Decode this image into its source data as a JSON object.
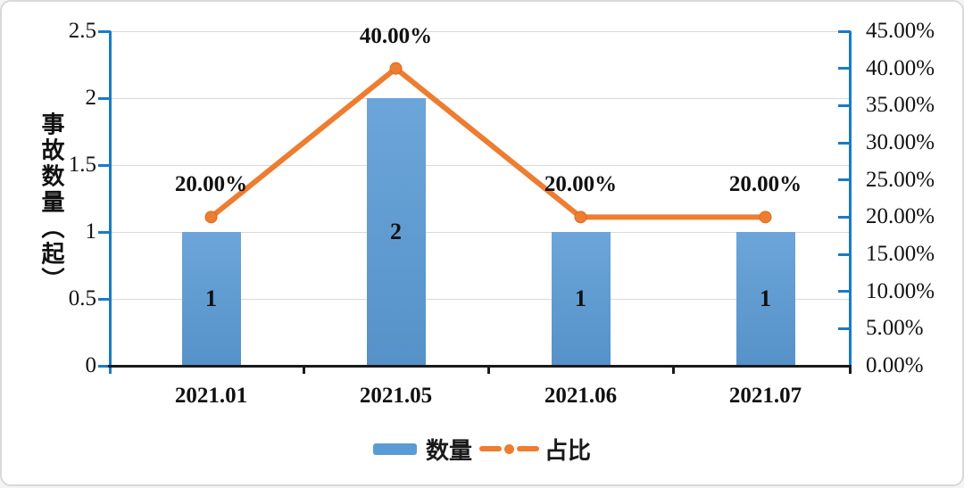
{
  "chart_data": {
    "type": "bar-line-combo",
    "categories": [
      "2021.01",
      "2021.05",
      "2021.06",
      "2021.07"
    ],
    "series": [
      {
        "name": "数量",
        "type": "bar",
        "axis": "left",
        "values": [
          1,
          2,
          1,
          1
        ],
        "bar_labels": [
          "1",
          "2",
          "1",
          "1"
        ],
        "color": "#5B9BD5"
      },
      {
        "name": "占比",
        "type": "line",
        "axis": "right",
        "values": [
          20,
          40,
          20,
          20
        ],
        "point_labels": [
          "20.00%",
          "40.00%",
          "20.00%",
          "20.00%"
        ],
        "color": "#ED7D31"
      }
    ],
    "left_axis": {
      "title": "事故数量（起）",
      "min": 0,
      "max": 2.5,
      "ticks": [
        {
          "v": 2.5,
          "label": "2.5"
        },
        {
          "v": 2,
          "label": "2"
        },
        {
          "v": 1.5,
          "label": "1.5"
        },
        {
          "v": 1,
          "label": "1"
        },
        {
          "v": 0.5,
          "label": "0.5"
        },
        {
          "v": 0,
          "label": "0"
        }
      ]
    },
    "right_axis": {
      "min": 0,
      "max": 45,
      "ticks": [
        {
          "v": 45,
          "label": "45.00%"
        },
        {
          "v": 40,
          "label": "40.00%"
        },
        {
          "v": 35,
          "label": "35.00%"
        },
        {
          "v": 30,
          "label": "30.00%"
        },
        {
          "v": 25,
          "label": "25.00%"
        },
        {
          "v": 20,
          "label": "20.00%"
        },
        {
          "v": 15,
          "label": "15.00%"
        },
        {
          "v": 10,
          "label": "10.00%"
        },
        {
          "v": 5,
          "label": "5.00%"
        },
        {
          "v": 0,
          "label": "0.00%"
        }
      ]
    },
    "legend": {
      "position": "bottom",
      "items": [
        "数量",
        "占比"
      ]
    },
    "grid": true,
    "colors": {
      "bar": "#5B9BD5",
      "line": "#ED7D31",
      "axis_line": "#1B7AC6",
      "x_axis": "#1A1A1A",
      "gridline": "#D9D9D9",
      "text": "#111111"
    }
  }
}
